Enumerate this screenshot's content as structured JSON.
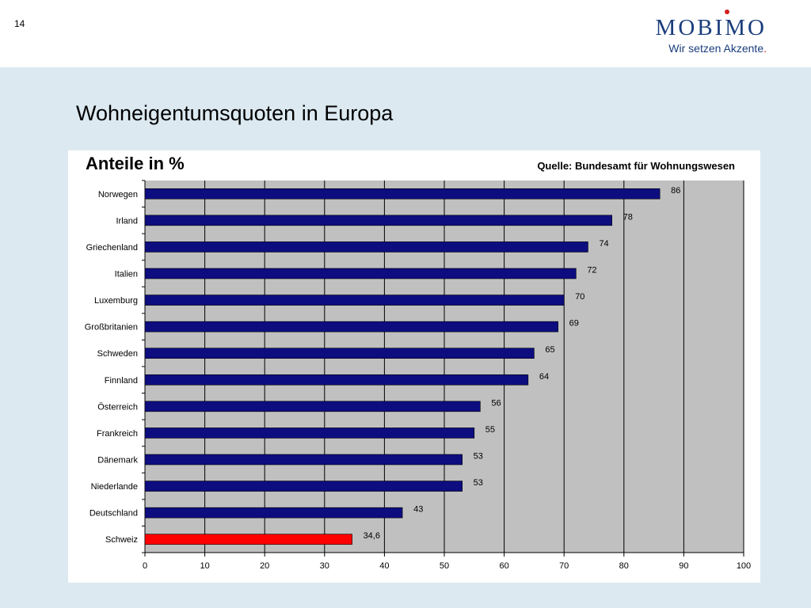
{
  "page": {
    "number": "14",
    "title": "Wohneigentumsquoten in Europa"
  },
  "logo": {
    "name": "MOBIMO",
    "tagline": "Wir setzen Akzente",
    "tagline_dot": ".",
    "accent_color": "#d31f1f",
    "brand_color": "#1a3d7c"
  },
  "chart_data": {
    "type": "bar",
    "orientation": "horizontal",
    "title": "Anteile in %",
    "source": "Quelle: Bundesamt für Wohnungswesen",
    "categories": [
      "Norwegen",
      "Irland",
      "Griechenland",
      "Italien",
      "Luxemburg",
      "Großbritanien",
      "Schweden",
      "Finnland",
      "Österreich",
      "Frankreich",
      "Dänemark",
      "Niederlande",
      "Deutschland",
      "Schweiz"
    ],
    "values": [
      86,
      78,
      74,
      72,
      70,
      69,
      65,
      64,
      56,
      55,
      53,
      53,
      43,
      34.6
    ],
    "value_labels": [
      "86",
      "78",
      "74",
      "72",
      "70",
      "69",
      "65",
      "64",
      "56",
      "55",
      "53",
      "53",
      "43",
      "34,6"
    ],
    "xlim": [
      0,
      100
    ],
    "xticks": [
      0,
      10,
      20,
      30,
      40,
      50,
      60,
      70,
      80,
      90,
      100
    ],
    "grid": true,
    "colors": {
      "bar": "#0d0d80",
      "highlight": "#ff0000",
      "plot_background": "#c0c0c0"
    },
    "highlight_category": "Schweiz"
  }
}
